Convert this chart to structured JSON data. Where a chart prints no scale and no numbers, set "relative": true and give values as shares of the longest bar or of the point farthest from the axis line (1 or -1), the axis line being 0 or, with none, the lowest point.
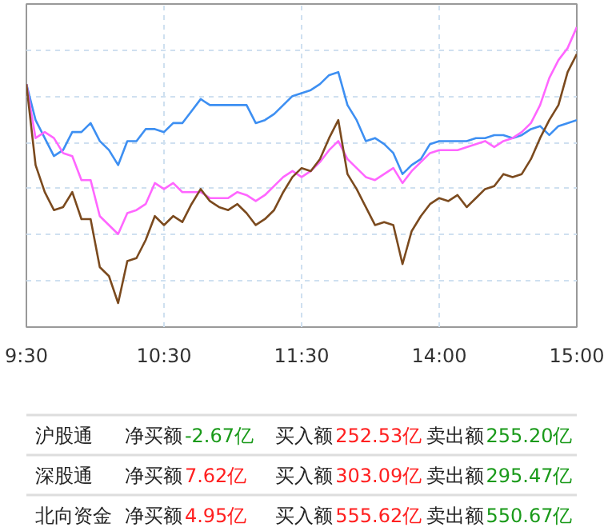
{
  "chart_data": [
    {
      "type": "line",
      "relative": true,
      "grid": true,
      "line_style": "solid",
      "marker": "none",
      "categories": [
        "9:30",
        null,
        null,
        null,
        null,
        null,
        null,
        null,
        null,
        null,
        null,
        null,
        null,
        null,
        null,
        "10:30",
        null,
        null,
        null,
        null,
        null,
        null,
        null,
        null,
        null,
        null,
        null,
        null,
        null,
        null,
        "11:30",
        null,
        null,
        null,
        null,
        null,
        null,
        null,
        null,
        null,
        null,
        null,
        null,
        null,
        null,
        "14:00",
        null,
        null,
        null,
        null,
        null,
        null,
        null,
        null,
        null,
        null,
        null,
        null,
        null,
        null,
        "15:00"
      ],
      "series": [
        {
          "color": "#3d8ff2",
          "values": [
            0.81,
            0.69,
            0.63,
            0.57,
            0.59,
            0.65,
            0.65,
            0.68,
            0.62,
            0.59,
            0.54,
            0.62,
            0.62,
            0.66,
            0.66,
            0.65,
            0.68,
            0.68,
            0.72,
            0.76,
            0.74,
            0.74,
            0.74,
            0.74,
            0.74,
            0.68,
            0.69,
            0.71,
            0.74,
            0.77,
            0.78,
            0.79,
            0.81,
            0.84,
            0.85,
            0.74,
            0.69,
            0.62,
            0.63,
            0.61,
            0.58,
            0.51,
            0.54,
            0.56,
            0.61,
            0.62,
            0.62,
            0.62,
            0.62,
            0.63,
            0.63,
            0.64,
            0.64,
            0.63,
            0.64,
            0.66,
            0.67,
            0.64,
            0.67,
            0.68,
            0.69
          ]
        },
        {
          "color": "#ff66ff",
          "values": [
            0.81,
            0.63,
            0.65,
            0.63,
            0.58,
            0.57,
            0.49,
            0.49,
            0.37,
            0.34,
            0.31,
            0.38,
            0.39,
            0.41,
            0.48,
            0.46,
            0.48,
            0.45,
            0.45,
            0.45,
            0.43,
            0.43,
            0.43,
            0.45,
            0.44,
            0.42,
            0.44,
            0.47,
            0.5,
            0.52,
            0.5,
            0.52,
            0.55,
            0.59,
            0.62,
            0.56,
            0.53,
            0.5,
            0.49,
            0.51,
            0.53,
            0.48,
            0.52,
            0.55,
            0.58,
            0.59,
            0.59,
            0.59,
            0.6,
            0.61,
            0.62,
            0.6,
            0.62,
            0.63,
            0.65,
            0.68,
            0.74,
            0.83,
            0.89,
            0.93,
            1.0
          ]
        },
        {
          "color": "#7b4a1e",
          "values": [
            0.81,
            0.54,
            0.45,
            0.39,
            0.4,
            0.45,
            0.36,
            0.36,
            0.2,
            0.17,
            0.08,
            0.22,
            0.23,
            0.29,
            0.37,
            0.34,
            0.37,
            0.35,
            0.41,
            0.46,
            0.42,
            0.4,
            0.39,
            0.41,
            0.38,
            0.34,
            0.36,
            0.39,
            0.45,
            0.5,
            0.53,
            0.52,
            0.56,
            0.63,
            0.69,
            0.51,
            0.46,
            0.4,
            0.34,
            0.35,
            0.34,
            0.21,
            0.32,
            0.37,
            0.41,
            0.43,
            0.42,
            0.44,
            0.4,
            0.43,
            0.46,
            0.47,
            0.51,
            0.5,
            0.51,
            0.56,
            0.63,
            0.69,
            0.74,
            0.85,
            0.91
          ]
        }
      ]
    },
    {
      "type": "other",
      "annotations": [
        "沪股通",
        "净买额",
        "-2.67亿",
        "买入额",
        "252.53亿",
        "卖出额",
        "255.20亿",
        "深股通",
        "净买额",
        "7.62亿",
        "买入额",
        "303.09亿",
        "卖出额",
        "295.47亿",
        "北向资金",
        "净买额",
        "4.95亿",
        "买入额",
        "555.62亿",
        "卖出额",
        "550.67亿"
      ],
      "colors": [
        "#222222",
        "#222222",
        "#1a9a1a",
        "#222222",
        "#ff2020",
        "#222222",
        "#1a9a1a",
        "#222222",
        "#222222",
        "#ff2020",
        "#222222",
        "#ff2020",
        "#222222",
        "#1a9a1a",
        "#222222",
        "#222222",
        "#ff2020",
        "#222222",
        "#ff2020",
        "#222222",
        "#1a9a1a"
      ]
    }
  ]
}
